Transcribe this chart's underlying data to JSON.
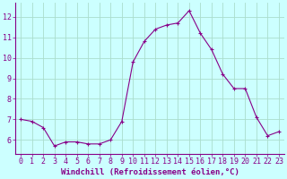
{
  "x": [
    0,
    1,
    2,
    3,
    4,
    5,
    6,
    7,
    8,
    9,
    10,
    11,
    12,
    13,
    14,
    15,
    16,
    17,
    18,
    19,
    20,
    21,
    22,
    23
  ],
  "y": [
    7.0,
    6.9,
    6.6,
    5.7,
    5.9,
    5.9,
    5.8,
    5.8,
    6.0,
    6.9,
    9.8,
    10.8,
    11.4,
    11.6,
    11.7,
    12.3,
    11.2,
    10.4,
    9.2,
    8.5,
    8.5,
    7.1,
    6.2,
    6.4
  ],
  "line_color": "#880088",
  "marker": "+",
  "marker_size": 3,
  "bg_color": "#ccffff",
  "grid_color": "#aaddcc",
  "xlabel": "Windchill (Refroidissement éolien,°C)",
  "xlabel_color": "#880088",
  "tick_color": "#880088",
  "spine_color": "#880088",
  "xlim": [
    -0.5,
    23.5
  ],
  "ylim": [
    5.3,
    12.7
  ],
  "yticks": [
    6,
    7,
    8,
    9,
    10,
    11,
    12
  ],
  "xticks": [
    0,
    1,
    2,
    3,
    4,
    5,
    6,
    7,
    8,
    9,
    10,
    11,
    12,
    13,
    14,
    15,
    16,
    17,
    18,
    19,
    20,
    21,
    22,
    23
  ],
  "xtick_labels": [
    "0",
    "1",
    "2",
    "3",
    "4",
    "5",
    "6",
    "7",
    "8",
    "9",
    "10",
    "11",
    "12",
    "13",
    "14",
    "15",
    "16",
    "17",
    "18",
    "19",
    "20",
    "21",
    "22",
    "23"
  ],
  "xlabel_fontsize": 6.5,
  "tick_fontsize": 6.0,
  "linewidth": 0.8,
  "markeredgewidth": 0.8
}
